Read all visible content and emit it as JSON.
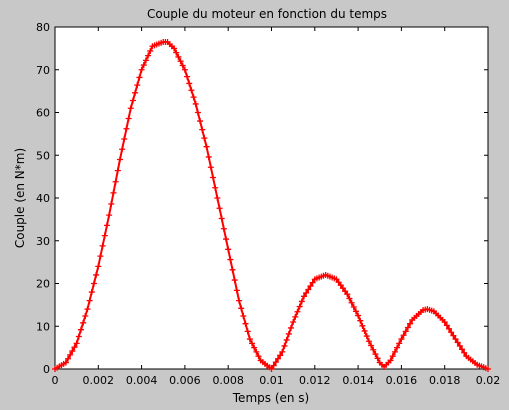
{
  "chart_data": {
    "type": "line",
    "title": "Couple du moteur en fonction du temps",
    "xlabel": "Temps (en s)",
    "ylabel": "Couple (en N*m)",
    "xlim": [
      0,
      0.02
    ],
    "ylim": [
      0,
      80
    ],
    "x_ticks": [
      0,
      0.002,
      0.004,
      0.006,
      0.008,
      0.01,
      0.012,
      0.014,
      0.016,
      0.018,
      0.02
    ],
    "x_tick_labels": [
      "0",
      "0.002",
      "0.004",
      "0.006",
      "0.008",
      "0.01",
      "0.012",
      "0.014",
      "0.016",
      "0.018",
      "0.02"
    ],
    "y_ticks": [
      0,
      10,
      20,
      30,
      40,
      50,
      60,
      70,
      80
    ],
    "y_tick_labels": [
      "0",
      "10",
      "20",
      "30",
      "40",
      "50",
      "60",
      "70",
      "80"
    ],
    "grid": false,
    "legend": "none",
    "series": [
      {
        "color": "#ff0000",
        "marker": "+",
        "x": [
          0,
          0.0005,
          0.001,
          0.0015,
          0.002,
          0.0025,
          0.003,
          0.0035,
          0.004,
          0.0045,
          0.005,
          0.0052,
          0.0055,
          0.006,
          0.0065,
          0.007,
          0.0075,
          0.008,
          0.0085,
          0.009,
          0.0095,
          0.01,
          0.0105,
          0.011,
          0.0115,
          0.012,
          0.0125,
          0.013,
          0.0135,
          0.014,
          0.0145,
          0.015,
          0.0152,
          0.0155,
          0.016,
          0.0165,
          0.017,
          0.0172,
          0.0175,
          0.018,
          0.0185,
          0.019,
          0.0195,
          0.02
        ],
        "y": [
          0,
          1.5,
          6,
          14,
          24,
          36,
          49,
          61,
          70,
          75.5,
          76.5,
          76.5,
          75,
          70,
          62,
          52,
          40,
          28,
          16,
          7,
          2,
          0,
          4,
          11,
          17,
          21,
          22,
          21,
          17.5,
          12.5,
          6.5,
          1.5,
          0.5,
          2,
          7,
          11.5,
          13.8,
          14,
          13.5,
          11,
          7,
          3,
          1,
          0
        ]
      }
    ]
  }
}
